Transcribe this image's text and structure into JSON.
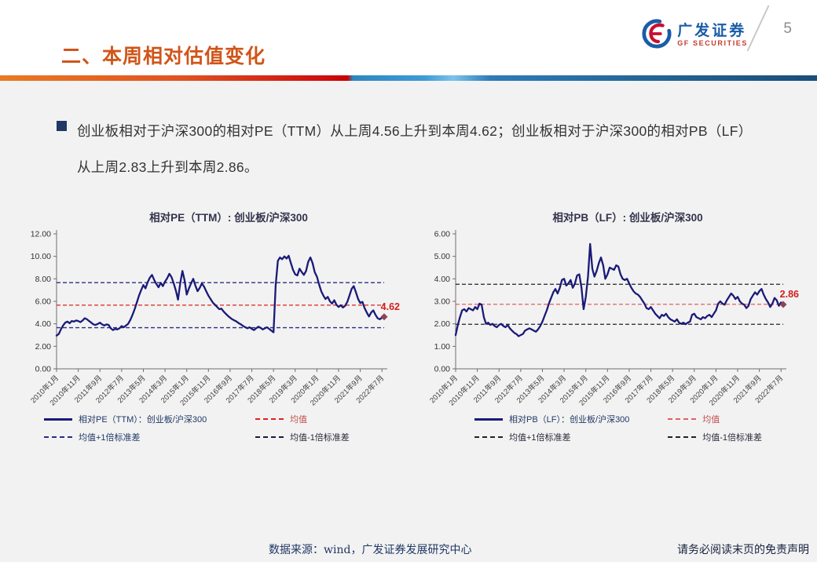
{
  "header": {
    "title": "二、本周相对估值变化",
    "logo_cn": "广发证券",
    "logo_en": "GF SECURITIES",
    "page_number": "5"
  },
  "bullet": {
    "text": "创业板相对于沪深300的相对PE（TTM）从上周4.56上升到本周4.62；创业板相对于沪深300的相对PB（LF）从上周2.83上升到本周2.86。"
  },
  "footer": {
    "source": "数据来源：wind，广发证券发展研究中心",
    "disclaimer": "请务必阅读末页的免责声明"
  },
  "colors": {
    "accent_orange": "#D0551A",
    "series_navy": "#1A1A78",
    "mean_red": "#E02020",
    "marker_maroon": "#8E4455",
    "body_gray": "#F2F2F2",
    "logo_blue": "#1A5CA8",
    "logo_red": "#C43B2F"
  },
  "chart_data": [
    {
      "type": "line",
      "title": "相对PE（TTM）: 创业板/沪深300",
      "ylim": [
        0,
        12
      ],
      "y_step": 2,
      "x_months_total": 152,
      "x_tick_positions": [
        0,
        10,
        20,
        30,
        40,
        50,
        60,
        70,
        80,
        90,
        100,
        110,
        120,
        130,
        140,
        150
      ],
      "x_tick_labels": [
        "2010年1月",
        "2010年11月",
        "2011年9月",
        "2012年7月",
        "2013年5月",
        "2014年3月",
        "2015年1月",
        "2015年11月",
        "2016年9月",
        "2017年7月",
        "2018年5月",
        "2019年3月",
        "2020年1月",
        "2020年11月",
        "2021年9月",
        "2022年7月"
      ],
      "series": [
        {
          "name": "相对PE（TTM）：创业板/沪深300",
          "color": "#1A1A78",
          "values": [
            2.95,
            3.1,
            3.5,
            3.85,
            4.1,
            4.2,
            4.05,
            4.25,
            4.2,
            4.3,
            4.25,
            4.15,
            4.3,
            4.5,
            4.4,
            4.25,
            4.1,
            3.95,
            3.9,
            4.0,
            4.1,
            3.95,
            3.85,
            3.95,
            3.9,
            3.6,
            3.45,
            3.55,
            3.5,
            3.6,
            3.8,
            3.7,
            3.85,
            4.0,
            4.35,
            4.8,
            5.3,
            5.9,
            6.5,
            7.0,
            7.45,
            7.15,
            7.7,
            8.1,
            8.35,
            7.9,
            7.55,
            7.25,
            7.65,
            7.35,
            7.75,
            8.05,
            8.45,
            8.15,
            7.6,
            6.95,
            6.15,
            7.6,
            8.7,
            7.9,
            6.6,
            7.15,
            7.6,
            8.0,
            7.4,
            6.9,
            7.2,
            7.6,
            7.3,
            6.9,
            6.5,
            6.2,
            5.9,
            5.7,
            5.5,
            5.3,
            5.35,
            5.1,
            4.9,
            4.7,
            4.55,
            4.4,
            4.3,
            4.2,
            4.05,
            3.95,
            3.8,
            3.7,
            3.6,
            3.7,
            3.55,
            3.45,
            3.6,
            3.75,
            3.65,
            3.5,
            3.6,
            3.7,
            3.55,
            3.4,
            3.25,
            7.4,
            9.6,
            9.9,
            9.75,
            10.0,
            9.8,
            10.05,
            9.4,
            8.8,
            8.4,
            8.3,
            8.9,
            8.6,
            8.35,
            8.7,
            9.5,
            9.9,
            9.4,
            8.6,
            8.2,
            7.5,
            6.9,
            6.5,
            6.2,
            6.4,
            6.0,
            5.8,
            6.1,
            5.7,
            5.5,
            5.65,
            5.45,
            5.6,
            5.95,
            6.5,
            7.1,
            7.35,
            6.8,
            6.2,
            5.85,
            5.95,
            5.4,
            5.0,
            4.65,
            5.0,
            5.2,
            4.8,
            4.5,
            4.4,
            4.55,
            4.62
          ]
        }
      ],
      "reference_lines": [
        {
          "name": "均值",
          "value": 5.66,
          "color": "#E02020"
        },
        {
          "name": "均值+1倍标准差",
          "value": 7.66,
          "color": "#2B2D86"
        },
        {
          "name": "均值-1倍标准差",
          "value": 3.66,
          "color": "#2B2D86"
        }
      ],
      "end_label": {
        "text": "4.62",
        "color": "#D21F1F"
      },
      "legend": [
        {
          "label": "相对PE（TTM）：创业板/沪深300",
          "swatch": "solid",
          "color": "#1A1A78",
          "text_color": "#1F3864"
        },
        {
          "label": "均值",
          "swatch": "dashed",
          "color": "#E02020",
          "text_color": "#C0504D"
        },
        {
          "label": "均值+1倍标准差",
          "swatch": "dashed",
          "color": "#2B2D86",
          "text_color": "#1F3864"
        },
        {
          "label": "均值-1倍标准差",
          "swatch": "dashed",
          "color": "#1A1A40",
          "text_color": "#2A2A3A"
        }
      ]
    },
    {
      "type": "line",
      "title": "相对PB（LF）: 创业板/沪深300",
      "ylim": [
        0,
        6
      ],
      "y_step": 1,
      "x_months_total": 152,
      "x_tick_positions": [
        0,
        10,
        20,
        30,
        40,
        50,
        60,
        70,
        80,
        90,
        100,
        110,
        120,
        130,
        140,
        150
      ],
      "x_tick_labels": [
        "2010年1月",
        "2010年11月",
        "2011年9月",
        "2012年7月",
        "2013年5月",
        "2014年3月",
        "2015年1月",
        "2015年11月",
        "2016年9月",
        "2017年7月",
        "2018年5月",
        "2019年3月",
        "2020年1月",
        "2020年11月",
        "2021年9月",
        "2022年7月"
      ],
      "series": [
        {
          "name": "相对PB（LF）：创业板/沪深300",
          "color": "#1A1A78",
          "values": [
            1.5,
            1.95,
            2.3,
            2.6,
            2.65,
            2.55,
            2.7,
            2.65,
            2.6,
            2.75,
            2.65,
            2.9,
            2.85,
            2.3,
            2.0,
            2.05,
            1.95,
            2.0,
            1.9,
            1.85,
            1.95,
            2.0,
            1.9,
            1.85,
            1.95,
            1.8,
            1.7,
            1.6,
            1.55,
            1.45,
            1.5,
            1.55,
            1.7,
            1.75,
            1.8,
            1.75,
            1.7,
            1.65,
            1.75,
            1.9,
            2.1,
            2.35,
            2.6,
            2.9,
            3.15,
            3.4,
            3.55,
            3.35,
            3.6,
            3.95,
            4.0,
            3.7,
            3.8,
            3.95,
            3.6,
            3.8,
            4.15,
            4.2,
            3.6,
            2.65,
            3.2,
            4.1,
            5.55,
            4.45,
            4.1,
            4.35,
            4.7,
            4.95,
            4.6,
            4.0,
            4.2,
            4.5,
            4.45,
            4.4,
            4.6,
            4.55,
            4.2,
            4.0,
            3.95,
            4.0,
            3.8,
            3.6,
            3.45,
            3.35,
            3.3,
            3.2,
            3.05,
            2.9,
            2.7,
            2.65,
            2.75,
            2.6,
            2.45,
            2.35,
            2.25,
            2.4,
            2.35,
            2.45,
            2.3,
            2.2,
            2.15,
            2.1,
            2.2,
            2.05,
            2.0,
            2.05,
            1.98,
            2.05,
            2.1,
            2.4,
            2.45,
            2.3,
            2.25,
            2.2,
            2.3,
            2.25,
            2.35,
            2.4,
            2.3,
            2.45,
            2.6,
            2.9,
            3.0,
            2.9,
            2.85,
            3.05,
            3.2,
            3.35,
            3.25,
            3.1,
            3.2,
            3.0,
            2.9,
            2.85,
            2.7,
            2.8,
            3.1,
            3.25,
            3.4,
            3.3,
            3.45,
            3.55,
            3.3,
            3.1,
            2.95,
            2.75,
            2.9,
            3.15,
            3.05,
            2.8,
            2.95,
            2.86
          ]
        }
      ],
      "reference_lines": [
        {
          "name": "均值",
          "value": 2.87,
          "color": "#E06060"
        },
        {
          "name": "均值+1倍标准差",
          "value": 3.76,
          "color": "#222222"
        },
        {
          "name": "均值-1倍标准差",
          "value": 1.98,
          "color": "#222222"
        }
      ],
      "end_label": {
        "text": "2.86",
        "color": "#D21F1F"
      },
      "legend": [
        {
          "label": "相对PB（LF）：创业板/沪深300",
          "swatch": "solid",
          "color": "#1A1A78",
          "text_color": "#1F3864"
        },
        {
          "label": "均值",
          "swatch": "dashed",
          "color": "#E06060",
          "text_color": "#C0504D"
        },
        {
          "label": "均值+1倍标准差",
          "swatch": "dashed",
          "color": "#222222",
          "text_color": "#2A2A3A"
        },
        {
          "label": "均值-1倍标准差",
          "swatch": "dashed",
          "color": "#222222",
          "text_color": "#2A2A3A"
        }
      ]
    }
  ]
}
